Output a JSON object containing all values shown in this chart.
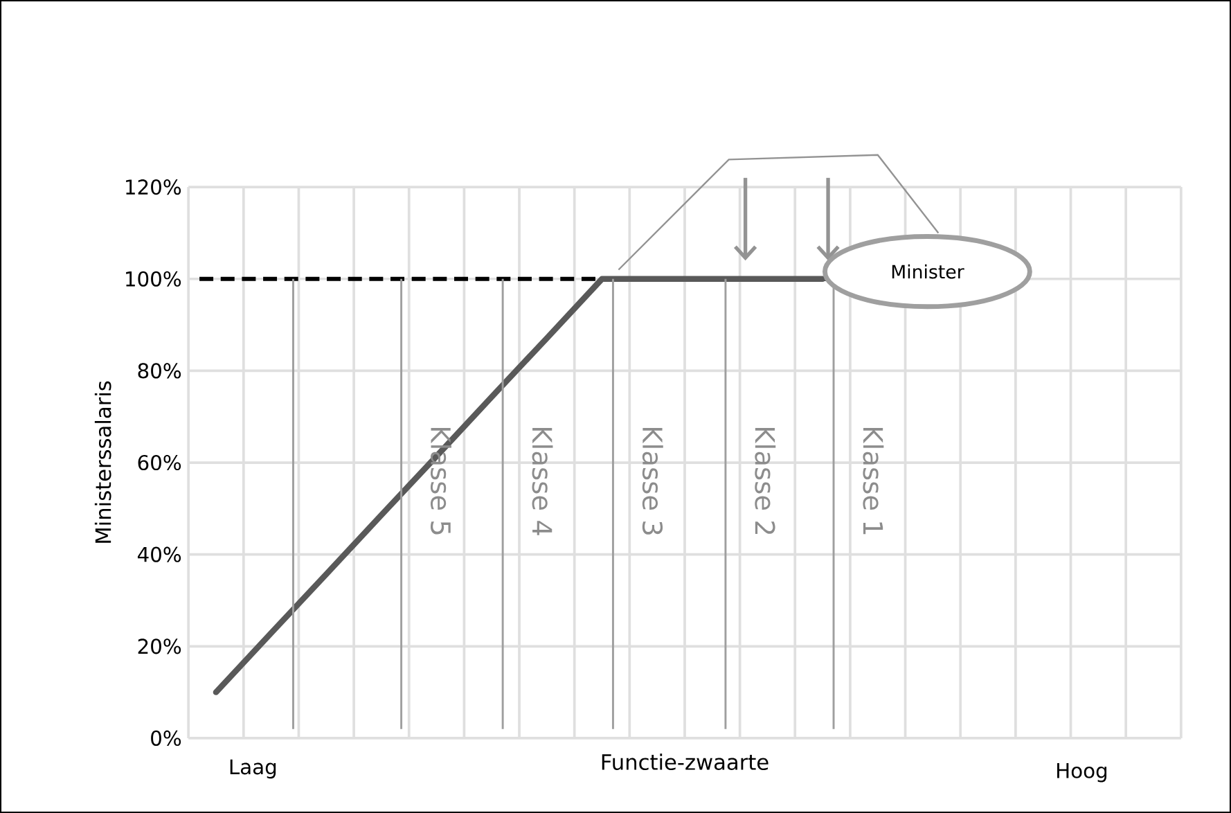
{
  "chart_data": {
    "type": "line",
    "xlabel": "Functie-zwaarte",
    "ylabel": "Ministerssalaris",
    "categories": [
      null,
      null,
      null,
      null,
      null,
      null,
      null,
      null,
      null,
      null,
      null,
      null,
      null,
      null,
      null,
      null,
      null,
      null
    ],
    "ylim": [
      0,
      120
    ],
    "yticks": [
      {
        "value": 0,
        "label": "0%"
      },
      {
        "value": 20,
        "label": "20%"
      },
      {
        "value": 40,
        "label": "40%"
      },
      {
        "value": 60,
        "label": "60%"
      },
      {
        "value": 80,
        "label": "80%"
      },
      {
        "value": 100,
        "label": "100%"
      },
      {
        "value": 120,
        "label": "120%"
      }
    ],
    "grid": true,
    "marker": "none",
    "line_style": "solid",
    "series": [
      {
        "color": "#595959",
        "values": [
          10,
          22.9,
          35.7,
          48.6,
          61.4,
          74.3,
          87.1,
          100,
          100,
          100,
          100,
          100,
          null,
          null,
          null,
          null,
          null,
          null
        ]
      }
    ],
    "ref_lines": [
      {
        "axis": "y",
        "value": 100,
        "color": "#000000",
        "line_style": "dashed"
      }
    ],
    "annotations": [
      "Klasse 5",
      "Klasse 4",
      "Klasse 3",
      "Klasse 2",
      "Klasse 1",
      "Minister",
      "Laag",
      "Hoog"
    ]
  }
}
